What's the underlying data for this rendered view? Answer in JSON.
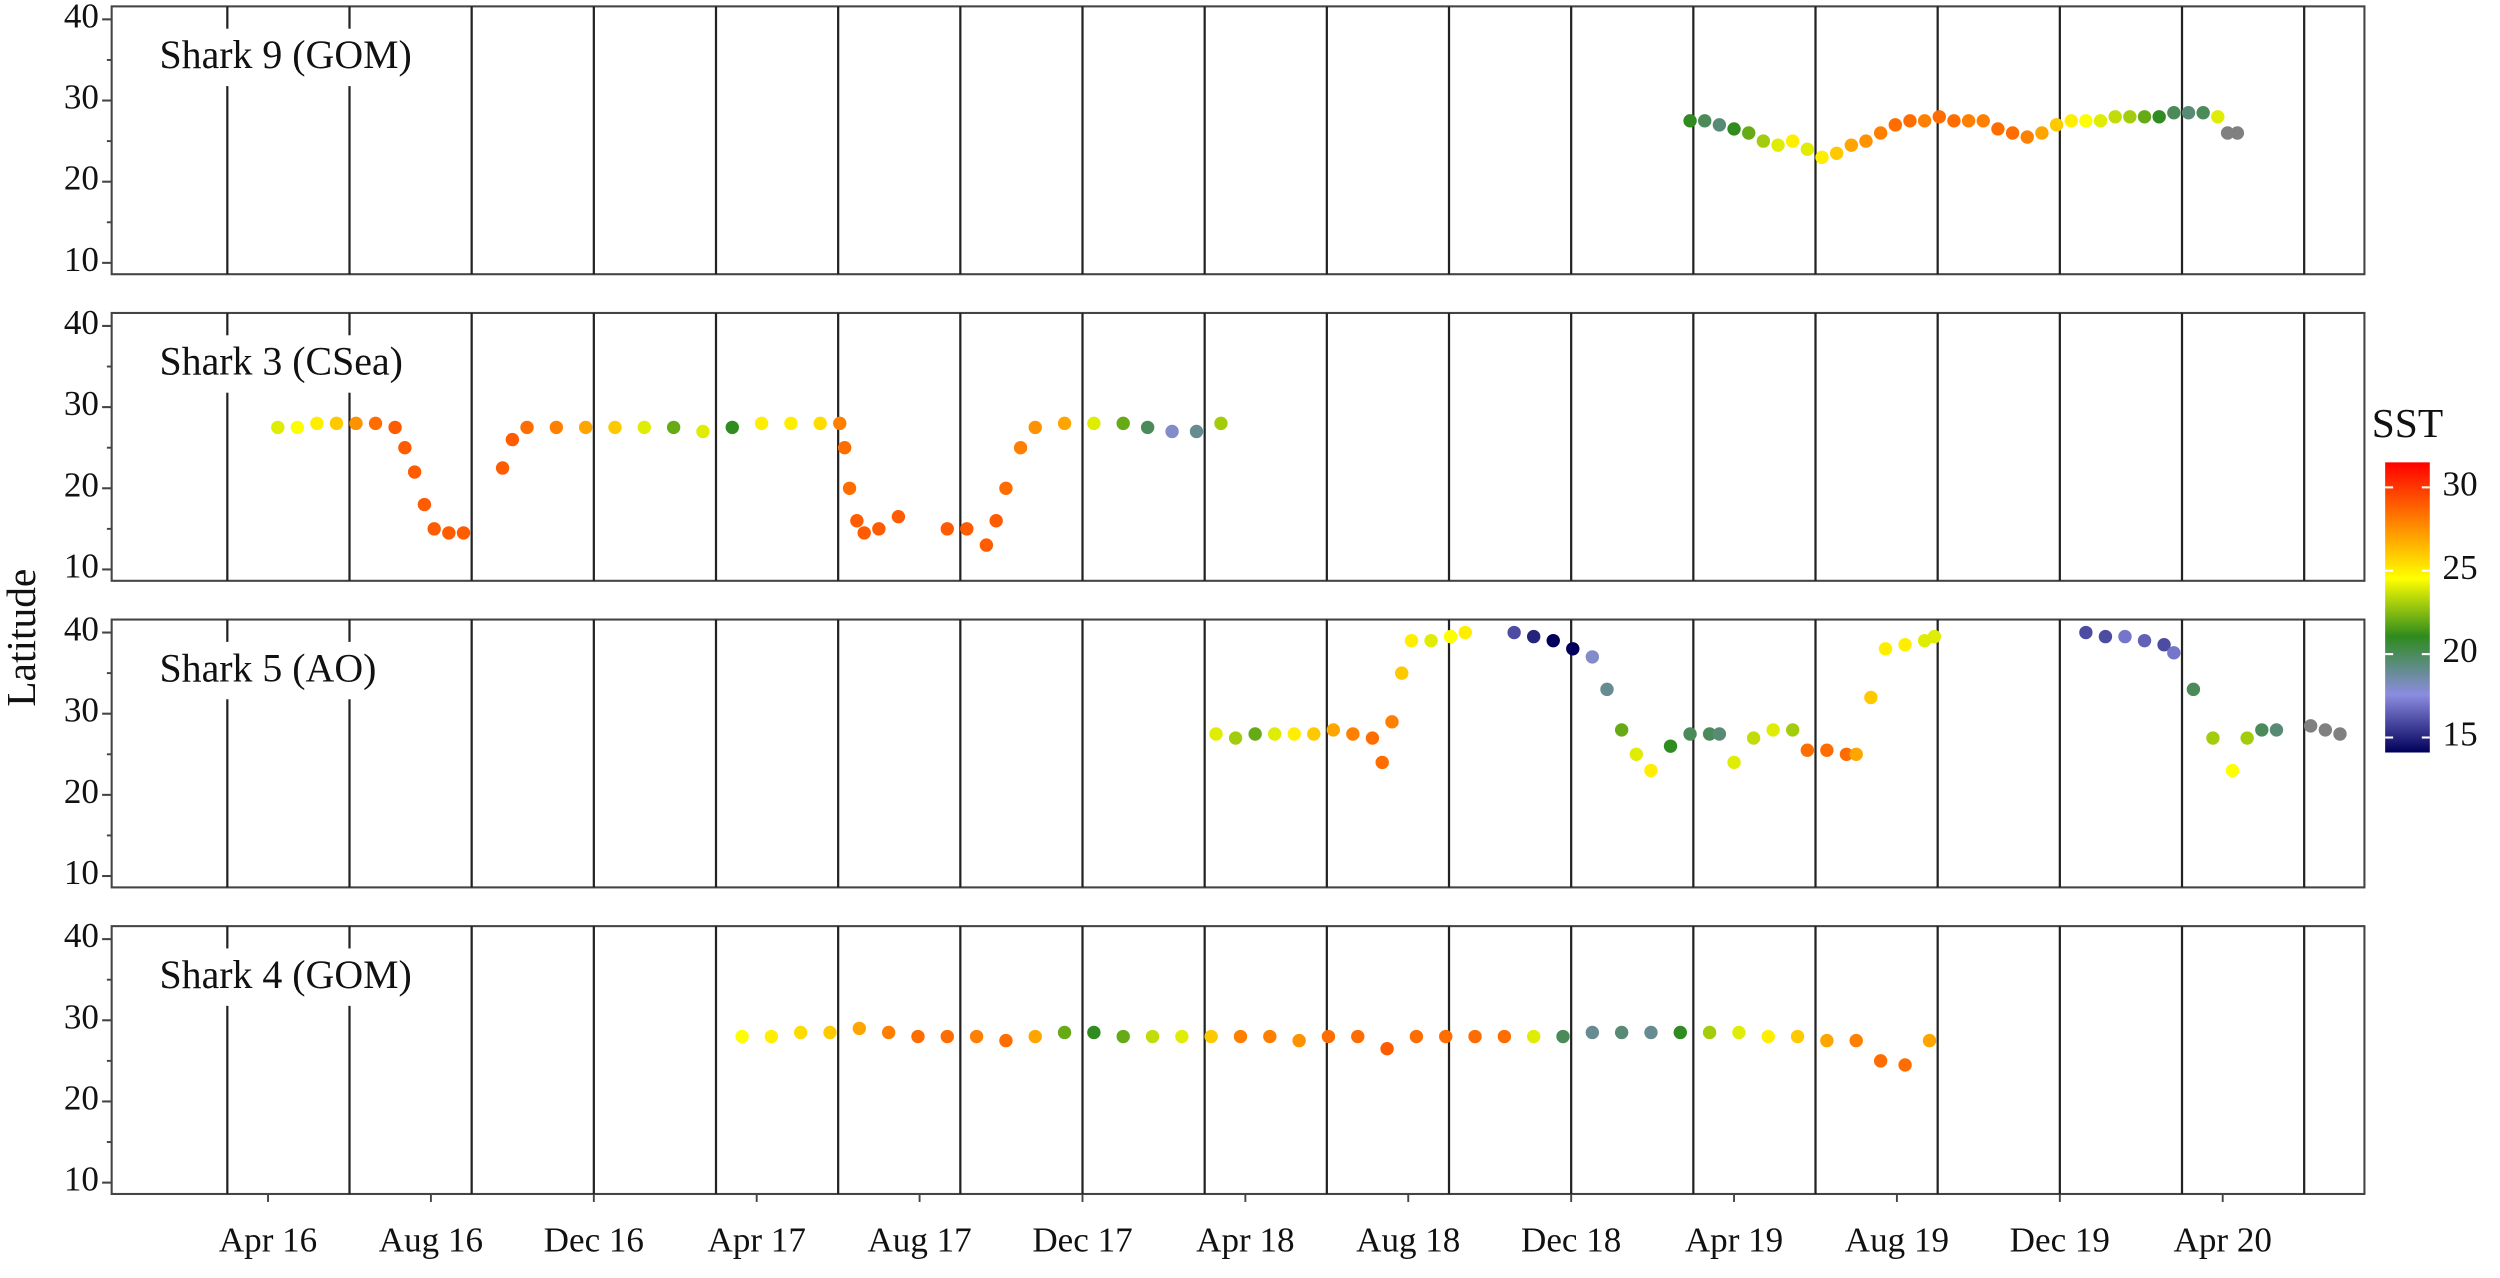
{
  "chart_data": {
    "type": "scatter",
    "ylabel": "Latitude",
    "xlim": [
      2015.93,
      2020.54
    ],
    "xticks": [
      {
        "value": 2016.25,
        "label": "Apr 16"
      },
      {
        "value": 2016.5833,
        "label": "Aug 16"
      },
      {
        "value": 2016.9167,
        "label": "Dec 16"
      },
      {
        "value": 2017.25,
        "label": "Apr 17"
      },
      {
        "value": 2017.5833,
        "label": "Aug 17"
      },
      {
        "value": 2017.9167,
        "label": "Dec 17"
      },
      {
        "value": 2018.25,
        "label": "Apr 18"
      },
      {
        "value": 2018.5833,
        "label": "Aug 18"
      },
      {
        "value": 2018.9167,
        "label": "Dec 18"
      },
      {
        "value": 2019.25,
        "label": "Apr 19"
      },
      {
        "value": 2019.5833,
        "label": "Aug 19"
      },
      {
        "value": 2019.9167,
        "label": "Dec 19"
      },
      {
        "value": 2020.25,
        "label": "Apr 20"
      }
    ],
    "xgrid": [
      2016.1667,
      2016.4167,
      2016.6667,
      2016.9167,
      2017.1667,
      2017.4167,
      2017.6667,
      2017.9167,
      2018.1667,
      2018.4167,
      2018.6667,
      2018.9167,
      2019.1667,
      2019.4167,
      2019.6667,
      2019.9167,
      2020.1667,
      2020.4167
    ],
    "ylim": [
      8.6,
      41.6
    ],
    "yticks": [
      10,
      20,
      30,
      40
    ],
    "yminor": [
      15,
      25,
      35
    ],
    "colorbar": {
      "title": "SST",
      "lim": [
        14.1,
        31.5
      ],
      "ticks": [
        15,
        20,
        25,
        30
      ],
      "colors": [
        "#00005a",
        "#8c8ce0",
        "#2e8b1e",
        "#ffff00",
        "#ff7f00",
        "#ff0000"
      ],
      "missing_color": "#808080"
    },
    "panels": [
      {
        "title": "Shark 9 (GOM)",
        "x": [
          2019.16,
          2019.19,
          2019.22,
          2019.25,
          2019.28,
          2019.31,
          2019.34,
          2019.37,
          2019.4,
          2019.43,
          2019.46,
          2019.49,
          2019.52,
          2019.55,
          2019.58,
          2019.61,
          2019.64,
          2019.67,
          2019.7,
          2019.73,
          2019.76,
          2019.79,
          2019.82,
          2019.85,
          2019.88,
          2019.91,
          2019.94,
          2019.97,
          2020.0,
          2020.03,
          2020.06,
          2020.09,
          2020.12,
          2020.15,
          2020.18,
          2020.21,
          2020.24,
          2020.26,
          2020.28
        ],
        "values": [
          27.5,
          27.5,
          27,
          26.5,
          26,
          25,
          24.5,
          25,
          24,
          23,
          23.5,
          24.5,
          25,
          26,
          27,
          27.5,
          27.5,
          28,
          27.5,
          27.5,
          27.5,
          26.5,
          26,
          25.5,
          26,
          27,
          27.5,
          27.5,
          27.5,
          28,
          28,
          28,
          28,
          28.5,
          28.5,
          28.5,
          28,
          26,
          26
        ],
        "sst": [
          21,
          20,
          19.5,
          21,
          22,
          23,
          24,
          25,
          24,
          25,
          26,
          27,
          27.5,
          28,
          28.5,
          28.5,
          28,
          28.5,
          28.5,
          28,
          28,
          28.5,
          28.5,
          28,
          27,
          26,
          25,
          24.5,
          24,
          23.5,
          23,
          22,
          21,
          20,
          19.5,
          20,
          24,
          null,
          null
        ]
      },
      {
        "title": "Shark 3 (CSea)",
        "x": [
          2016.27,
          2016.31,
          2016.35,
          2016.39,
          2016.43,
          2016.47,
          2016.51,
          2016.53,
          2016.55,
          2016.57,
          2016.59,
          2016.62,
          2016.65,
          2016.73,
          2016.75,
          2016.78,
          2016.84,
          2016.9,
          2016.96,
          2017.02,
          2017.08,
          2017.14,
          2017.2,
          2017.26,
          2017.32,
          2017.38,
          2017.42,
          2017.43,
          2017.44,
          2017.455,
          2017.47,
          2017.5,
          2017.54,
          2017.64,
          2017.68,
          2017.72,
          2017.74,
          2017.76,
          2017.79,
          2017.82,
          2017.88,
          2017.94,
          2018.0,
          2018.05,
          2018.1,
          2018.15,
          2018.2
        ],
        "values": [
          27.5,
          27.5,
          28,
          28,
          28,
          28,
          27.5,
          25,
          22,
          18,
          15,
          14.5,
          14.5,
          22.5,
          26,
          27.5,
          27.5,
          27.5,
          27.5,
          27.5,
          27.5,
          27,
          27.5,
          28,
          28,
          28,
          28,
          25,
          20,
          16,
          14.5,
          15,
          16.5,
          15,
          15,
          13,
          16,
          20,
          25,
          27.5,
          28,
          28,
          28,
          27.5,
          27,
          27,
          28
        ],
        "sst": [
          24,
          24.5,
          25,
          26,
          27.5,
          28.5,
          29,
          29,
          29,
          29,
          29,
          29,
          29,
          29,
          29,
          28.5,
          28,
          27,
          26,
          24,
          22,
          24,
          21,
          25,
          25,
          25.5,
          28,
          28.5,
          28.5,
          29,
          29,
          29,
          29,
          29,
          29,
          29,
          29,
          28.5,
          28,
          27.5,
          27,
          24,
          22,
          20,
          18,
          19,
          23
        ]
      },
      {
        "title": "Shark 5 (AO)",
        "x": [
          2018.19,
          2018.23,
          2018.27,
          2018.31,
          2018.35,
          2018.39,
          2018.43,
          2018.47,
          2018.51,
          2018.53,
          2018.55,
          2018.57,
          2018.59,
          2018.63,
          2018.67,
          2018.7,
          2018.8,
          2018.84,
          2018.88,
          2018.92,
          2018.96,
          2018.99,
          2019.02,
          2019.05,
          2019.08,
          2019.12,
          2019.16,
          2019.2,
          2019.22,
          2019.25,
          2019.29,
          2019.33,
          2019.37,
          2019.4,
          2019.44,
          2019.48,
          2019.5,
          2019.53,
          2019.56,
          2019.6,
          2019.64,
          2019.66,
          2019.97,
          2020.01,
          2020.05,
          2020.09,
          2020.13,
          2020.15,
          2020.19,
          2020.23,
          2020.27,
          2020.3,
          2020.33,
          2020.36,
          2020.43,
          2020.46,
          2020.49
        ],
        "values": [
          27.5,
          27,
          27.5,
          27.5,
          27.5,
          27.5,
          28,
          27.5,
          27,
          24,
          29,
          35,
          39,
          39,
          39.5,
          40,
          40,
          39.5,
          39,
          38,
          37,
          33,
          28,
          25,
          23,
          26,
          27.5,
          27.5,
          27.5,
          24,
          27,
          28,
          28,
          25.5,
          25.5,
          25,
          25,
          32,
          38,
          38.5,
          39,
          39.5,
          40,
          39.5,
          39.5,
          39,
          38.5,
          37.5,
          33,
          27,
          23,
          27,
          28,
          28,
          28.5,
          28,
          27.5
        ],
        "sst": [
          24,
          23,
          22,
          24,
          25,
          26,
          27,
          28,
          28.5,
          28.5,
          28,
          26,
          25,
          24,
          24.5,
          25,
          16,
          15,
          13.5,
          14,
          18,
          19,
          22,
          24,
          25,
          21,
          20,
          20,
          19.5,
          24,
          23.5,
          24,
          23,
          28.5,
          28.5,
          28.5,
          27,
          26,
          25,
          25,
          24,
          24,
          16,
          16,
          17,
          16.5,
          16,
          17,
          20,
          23,
          24.5,
          23,
          20,
          19.5,
          null,
          null,
          null
        ]
      },
      {
        "title": "Shark 4 (GOM)",
        "x": [
          2017.22,
          2017.28,
          2017.34,
          2017.4,
          2017.46,
          2017.52,
          2017.58,
          2017.64,
          2017.7,
          2017.76,
          2017.82,
          2017.88,
          2017.94,
          2018.0,
          2018.06,
          2018.12,
          2018.18,
          2018.24,
          2018.3,
          2018.36,
          2018.42,
          2018.48,
          2018.54,
          2018.6,
          2018.66,
          2018.72,
          2018.78,
          2018.84,
          2018.9,
          2018.96,
          2019.02,
          2019.08,
          2019.14,
          2019.2,
          2019.26,
          2019.32,
          2019.38,
          2019.44,
          2019.5,
          2019.55,
          2019.6,
          2019.65
        ],
        "values": [
          28,
          28,
          28.5,
          28.5,
          29,
          28.5,
          28,
          28,
          28,
          27.5,
          28,
          28.5,
          28.5,
          28,
          28,
          28,
          28,
          28,
          28,
          27.5,
          28,
          28,
          26.5,
          28,
          28,
          28,
          28,
          28,
          28,
          28.5,
          28.5,
          28.5,
          28.5,
          28.5,
          28.5,
          28,
          28,
          27.5,
          27.5,
          25,
          24.5,
          27.5
        ],
        "sst": [
          24.5,
          25,
          25.5,
          26,
          27,
          28,
          28.5,
          28.5,
          28,
          28.5,
          27,
          22,
          21,
          22,
          23.5,
          24,
          26,
          28,
          28,
          27.5,
          28.5,
          28.5,
          29,
          28.5,
          28.5,
          28.5,
          28.5,
          24,
          20,
          19,
          19.5,
          19,
          21,
          23,
          24,
          25,
          26,
          27,
          28,
          28.5,
          28.5,
          27
        ]
      }
    ]
  }
}
